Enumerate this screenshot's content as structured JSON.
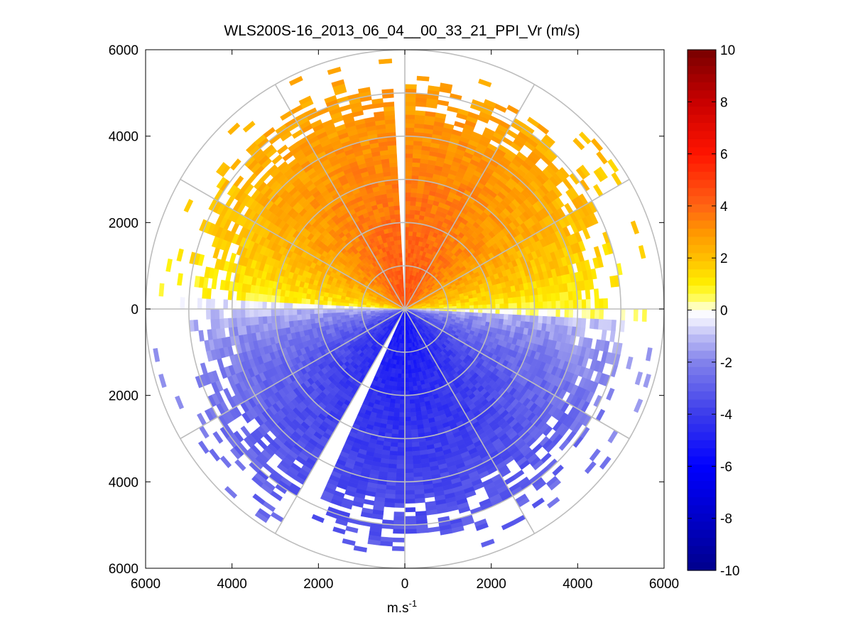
{
  "chart_data": {
    "type": "heatmap",
    "subtype": "polar-ppi",
    "title": "WLS200S-16_2013_06_04__00_33_21_PPI_Vr (m/s)",
    "xlabel": "m.s",
    "xlabel_sup": "-1",
    "ylabel": "",
    "xlim": [
      -6000,
      6000
    ],
    "ylim": [
      -6000,
      6000
    ],
    "x_ticks": [
      -6000,
      -4000,
      -2000,
      0,
      2000,
      4000,
      6000
    ],
    "x_tick_labels": [
      "6000",
      "4000",
      "2000",
      "0",
      "2000",
      "4000",
      "6000"
    ],
    "y_ticks": [
      6000,
      4000,
      2000,
      0,
      -2000,
      -4000,
      -6000
    ],
    "y_tick_labels": [
      "6000",
      "4000",
      "2000",
      "0",
      "2000",
      "4000",
      "6000"
    ],
    "range_rings": [
      1000,
      2000,
      3000,
      4000,
      5000,
      6000
    ],
    "spoke_angles_deg": [
      0,
      30,
      60,
      90,
      120,
      150,
      180,
      210,
      240,
      270,
      300,
      330
    ],
    "colorbar": {
      "min": -10,
      "max": 10,
      "ticks": [
        10,
        8,
        6,
        4,
        2,
        0,
        -2,
        -4,
        -6,
        -8,
        -10
      ],
      "tick_labels": [
        "10",
        "8",
        "6",
        "4",
        "2",
        "0",
        "-2",
        "-4",
        "-6",
        "-8",
        "-10"
      ]
    },
    "sectors": [
      {
        "region": "north half (az 270-90 via 0)",
        "velocity_range": [
          0,
          4
        ],
        "sign": "positive",
        "note": "approaching yellow near horizon, orange/red near center"
      },
      {
        "region": "south half (az 90-270 via 180)",
        "velocity_range": [
          -5,
          0
        ],
        "sign": "negative",
        "note": "pale blue near horizon, deep blue toward south"
      },
      {
        "region": "gap az 356-359",
        "velocity_range": null,
        "note": "no data"
      },
      {
        "region": "gap az 203-207",
        "velocity_range": null,
        "note": "no data"
      }
    ]
  }
}
